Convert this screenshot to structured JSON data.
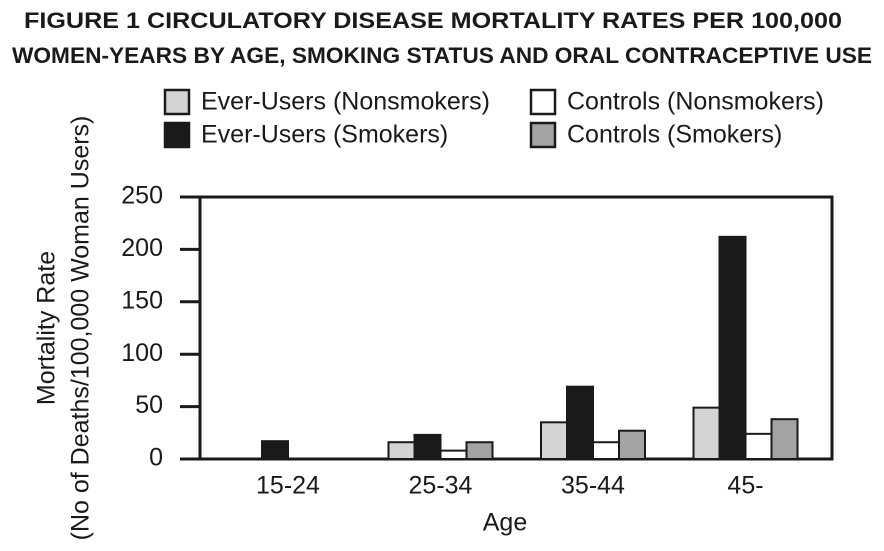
{
  "chart_data": {
    "type": "bar",
    "title": [
      "FIGURE 1 CIRCULATORY DISEASE MORTALITY RATES PER 100,000",
      "WOMEN-YEARS BY AGE, SMOKING STATUS AND ORAL CONTRACEPTIVE USE"
    ],
    "x_label": "Age",
    "y_label": [
      "Mortality Rate",
      "(No of Deaths/100,000 Woman Users)"
    ],
    "categories": [
      "15-24",
      "25-34",
      "35-44",
      "45-"
    ],
    "series": [
      {
        "name": "Ever-Users (Nonsmokers)",
        "color": "#d4d4d4",
        "values": [
          0,
          16,
          35,
          49
        ]
      },
      {
        "name": "Ever-Users (Smokers)",
        "color": "#1a1a1a",
        "values": [
          17,
          23,
          69,
          212
        ]
      },
      {
        "name": "Controls (Nonsmokers)",
        "color": "#ffffff",
        "values": [
          0,
          8,
          16,
          24
        ]
      },
      {
        "name": "Controls (Smokers)",
        "color": "#a3a3a3",
        "values": [
          0,
          16,
          27,
          38
        ]
      }
    ],
    "ylim": [
      0,
      250
    ],
    "yticks": [
      0,
      50,
      100,
      150,
      200,
      250
    ]
  }
}
